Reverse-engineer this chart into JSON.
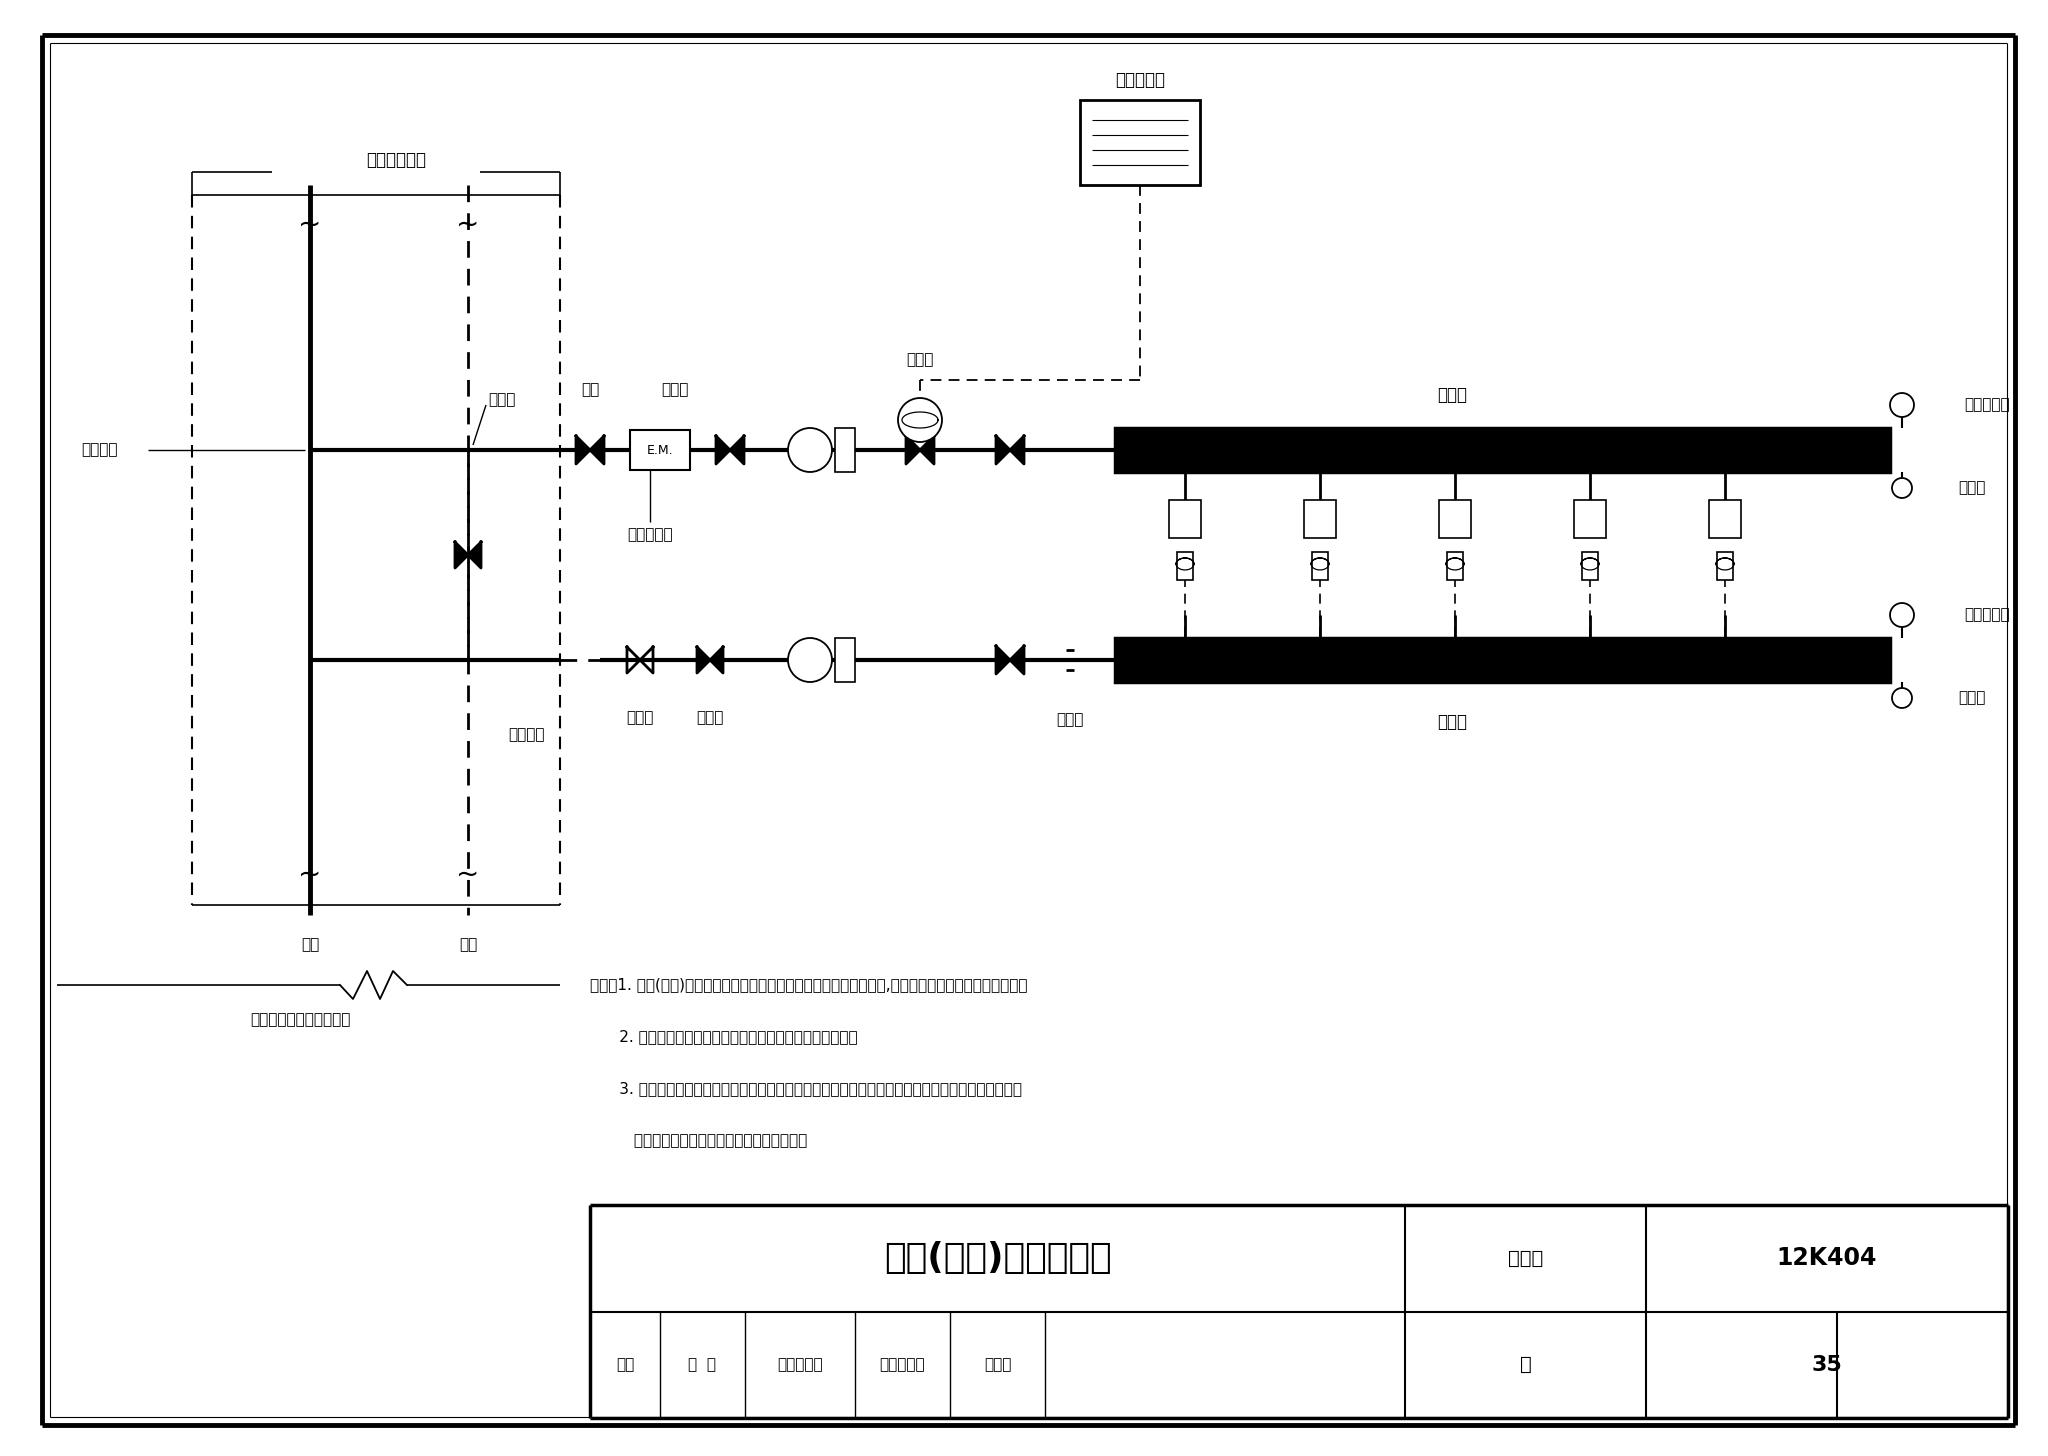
{
  "title": "总体(分户)温控示意图",
  "atlas_no": "12K404",
  "page": "35",
  "note_line1": "说明：1. 总体(分户)控制在分水器或集水器总管上设置一个自动调节阀,控制整个用户或区域的室内温度。",
  "note_line2": "      2. 室温温控器宜设在被控温的典型房间或代表性区域内。",
  "note_line3": "      3. 热水地面辐射供暖系统自动调节阀宜采用电动阀或自力式温度控制阀（不可采用内置温包型自力",
  "note_line4": "         式恒温控制阀），也可采用电热式控制阀。",
  "label_shaft": "管道井内部件",
  "label_bypass": "旁通管",
  "label_valve": "阀门",
  "label_filter": "过滤器",
  "label_heat_meter": "热计量装置",
  "label_temp_ctrl": "温控阀",
  "label_manifold_s": "分水器",
  "label_manifold_r": "集水器",
  "label_union": "活接头",
  "label_auto_vent": "自动排气阀",
  "label_drain": "泄水阀",
  "label_balance": "平衡阀",
  "label_lockout": "锁闭阀",
  "label_room_thermo": "室温温控器",
  "label_heat_source": "热源具体形式由设计确定",
  "label_supply_riser": "供水立管",
  "label_return_riser": "回水立管",
  "label_supply": "供水",
  "label_return": "回水",
  "label_em": "E.M.",
  "tb_title": "总体(分户)温控示意图",
  "tb_atlas_label": "图集号",
  "tb_page_label": "页",
  "tb_shenhe": "审核",
  "tb_gao": "高  浪",
  "tb_jiaodui": "校对",
  "tb_renzhaocheng": "任兆成",
  "tb_sheji": "设计",
  "tb_dengyouyuan": "邓有源",
  "bg_color": "#ffffff"
}
